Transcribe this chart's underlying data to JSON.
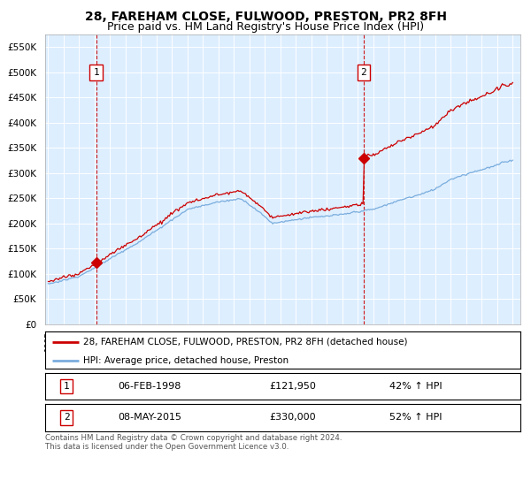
{
  "title": "28, FAREHAM CLOSE, FULWOOD, PRESTON, PR2 8FH",
  "subtitle": "Price paid vs. HM Land Registry's House Price Index (HPI)",
  "legend_line1": "28, FAREHAM CLOSE, FULWOOD, PRESTON, PR2 8FH (detached house)",
  "legend_line2": "HPI: Average price, detached house, Preston",
  "sale1_label": "1",
  "sale1_date": "06-FEB-1998",
  "sale1_price": "£121,950",
  "sale1_hpi": "42% ↑ HPI",
  "sale1_year": 1998.1,
  "sale1_value": 121950,
  "sale2_label": "2",
  "sale2_date": "08-MAY-2015",
  "sale2_price": "£330,000",
  "sale2_hpi": "52% ↑ HPI",
  "sale2_year": 2015.37,
  "sale2_value": 330000,
  "hpi_color": "#7aaddd",
  "price_color": "#cc0000",
  "background_color": "#ddeeff",
  "ylim": [
    0,
    575000
  ],
  "yticks": [
    0,
    50000,
    100000,
    150000,
    200000,
    250000,
    300000,
    350000,
    400000,
    450000,
    500000,
    550000
  ],
  "footnote": "Contains HM Land Registry data © Crown copyright and database right 2024.\nThis data is licensed under the Open Government Licence v3.0.",
  "title_fontsize": 10,
  "subtitle_fontsize": 9
}
